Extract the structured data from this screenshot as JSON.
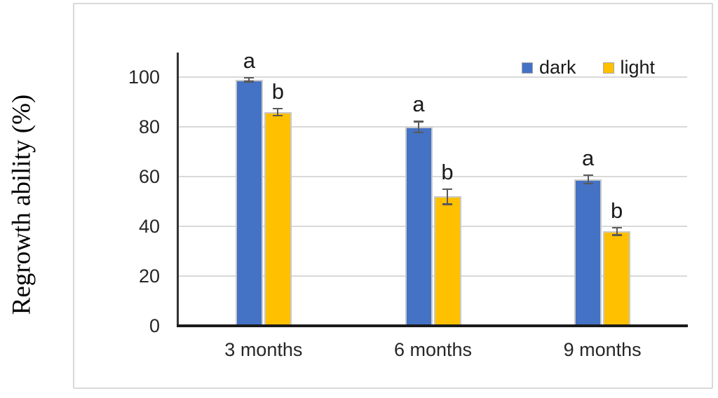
{
  "chart_data": {
    "type": "bar",
    "title": "",
    "xlabel": "",
    "ylabel": "Regrowth ability (%)",
    "categories": [
      "3 months",
      "6 months",
      "9 months"
    ],
    "series": [
      {
        "name": "dark",
        "color": "#4472C4",
        "values": [
          99,
          80,
          59
        ],
        "errors": [
          0.8,
          2.2,
          1.7
        ],
        "sig_labels": [
          "a",
          "a",
          "a"
        ]
      },
      {
        "name": "light",
        "color": "#FFC000",
        "values": [
          86,
          52,
          38
        ],
        "errors": [
          1.4,
          3.0,
          1.5
        ],
        "sig_labels": [
          "b",
          "b",
          "b"
        ]
      }
    ],
    "ylim": [
      0,
      100
    ],
    "yticks": [
      0,
      20,
      40,
      60,
      80,
      100
    ],
    "grid": "horizontal",
    "legend_position": "top-right",
    "colors": {
      "gridline": "#d9d9d9",
      "axis": "#262626",
      "bar_border": "#c9c9c9",
      "error_bar": "#595959",
      "frame_border": "#d9d9d9",
      "background": "#ffffff"
    }
  }
}
